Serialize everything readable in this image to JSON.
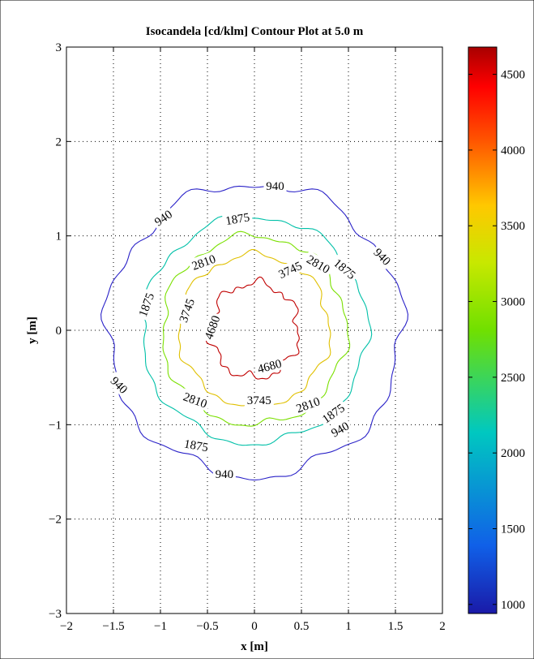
{
  "chart_data": {
    "type": "contour",
    "title": "Isocandela [cd/klm] Contour Plot at 5.0 m",
    "xlabel": "x [m]",
    "ylabel": "y [m]",
    "xlim": [
      -2,
      2
    ],
    "ylim": [
      -3,
      3
    ],
    "x_ticks": [
      -2,
      -1.5,
      -1,
      -0.5,
      0,
      0.5,
      1,
      1.5,
      2
    ],
    "x_tick_labels": [
      "−2",
      "−1.5",
      "−1",
      "−0.5",
      "0",
      "0.5",
      "1",
      "1.5",
      "2"
    ],
    "y_ticks": [
      -3,
      -2,
      -1,
      0,
      1,
      2,
      3
    ],
    "y_tick_labels": [
      "−3",
      "−2",
      "−1",
      "0",
      "1",
      "2",
      "3"
    ],
    "grid": true,
    "colorbar": {
      "range": [
        940,
        4680
      ],
      "ticks": [
        1000,
        1500,
        2000,
        2500,
        3000,
        3500,
        4000,
        4500
      ],
      "tick_labels": [
        "1000",
        "1500",
        "2000",
        "2500",
        "3000",
        "3500",
        "4000",
        "4500"
      ],
      "colormap": "jet"
    },
    "levels": [
      {
        "value": 940,
        "label": "940",
        "color": "#2a22c8",
        "radius_x": 1.57,
        "radius_y": 1.55,
        "wobble": 0.03
      },
      {
        "value": 1875,
        "label": "1875",
        "color": "#00c0a8",
        "radius_x": 1.2,
        "radius_y": 1.2,
        "wobble": 0.025
      },
      {
        "value": 2810,
        "label": "2810",
        "color": "#7ae000",
        "radius_x": 0.98,
        "radius_y": 1.0,
        "wobble": 0.03
      },
      {
        "value": 3745,
        "label": "3745",
        "color": "#e0c000",
        "radius_x": 0.8,
        "radius_y": 0.8,
        "wobble": 0.035
      },
      {
        "value": 4680,
        "label": "4680",
        "color": "#c00000",
        "radius_x": 0.47,
        "radius_y": 0.5,
        "wobble": 0.07
      }
    ],
    "contour_labels": [
      {
        "text": "940",
        "x": 0.22,
        "y": 1.53,
        "angle": 0
      },
      {
        "text": "940",
        "x": -0.97,
        "y": 1.19,
        "angle": -35
      },
      {
        "text": "940",
        "x": 1.36,
        "y": 0.78,
        "angle": 45
      },
      {
        "text": "940",
        "x": -1.44,
        "y": -0.58,
        "angle": 45
      },
      {
        "text": "940",
        "x": 0.91,
        "y": -1.05,
        "angle": -30
      },
      {
        "text": "940",
        "x": -0.32,
        "y": -1.52,
        "angle": 0
      },
      {
        "text": "1875",
        "x": -0.18,
        "y": 1.18,
        "angle": -10
      },
      {
        "text": "1875",
        "x": 0.96,
        "y": 0.65,
        "angle": 40
      },
      {
        "text": "1875",
        "x": -1.15,
        "y": 0.27,
        "angle": -70
      },
      {
        "text": "1875",
        "x": 0.84,
        "y": -0.88,
        "angle": -35
      },
      {
        "text": "1875",
        "x": -0.62,
        "y": -1.22,
        "angle": 10
      },
      {
        "text": "2810",
        "x": -0.54,
        "y": 0.72,
        "angle": -20
      },
      {
        "text": "2810",
        "x": 0.68,
        "y": 0.7,
        "angle": 30
      },
      {
        "text": "2810",
        "x": -0.63,
        "y": -0.74,
        "angle": 20
      },
      {
        "text": "2810",
        "x": 0.57,
        "y": -0.79,
        "angle": -20
      },
      {
        "text": "3745",
        "x": 0.38,
        "y": 0.64,
        "angle": -25
      },
      {
        "text": "3745",
        "x": -0.72,
        "y": 0.21,
        "angle": -70
      },
      {
        "text": "3745",
        "x": 0.05,
        "y": -0.74,
        "angle": 0
      },
      {
        "text": "4680",
        "x": -0.45,
        "y": 0.03,
        "angle": -70
      },
      {
        "text": "4680",
        "x": 0.16,
        "y": -0.38,
        "angle": -15
      }
    ]
  }
}
